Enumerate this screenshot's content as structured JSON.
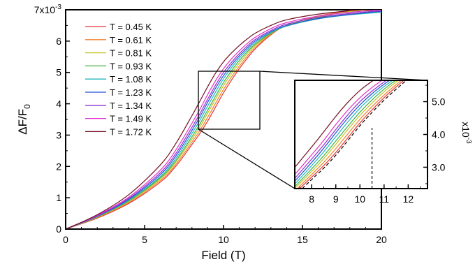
{
  "chart_data": [
    {
      "type": "line",
      "xlabel": "Field (T)",
      "ylabel_main": "ΔF/F",
      "ylabel_sub": "0",
      "xlim": [
        0,
        20
      ],
      "ylim": [
        0,
        7
      ],
      "xticks": [
        "0",
        "5",
        "10",
        "15",
        "20"
      ],
      "yticks": [
        "0",
        "1",
        "2",
        "3",
        "4",
        "5",
        "6",
        "7x10"
      ],
      "yscale_exponent": "-3",
      "unit_scale": 0.001,
      "legend": "top-left",
      "grid": false,
      "series": [
        {
          "name": "T = 0.45 K",
          "color": "#e8322f",
          "x": [
            0,
            2,
            4,
            6,
            7,
            8,
            8.5,
            9,
            9.5,
            10,
            10.5,
            11,
            11.5,
            12,
            13,
            14,
            16,
            18,
            20
          ],
          "y": [
            0,
            0.35,
            0.82,
            1.5,
            2.02,
            2.7,
            3.05,
            3.45,
            3.9,
            4.35,
            4.75,
            5.12,
            5.45,
            5.75,
            6.2,
            6.5,
            6.8,
            6.98,
            7.15
          ]
        },
        {
          "name": "T = 0.61 K",
          "color": "#f08030",
          "x": [
            0,
            2,
            4,
            6,
            7,
            8,
            8.5,
            9,
            9.5,
            10,
            10.5,
            11,
            11.5,
            12,
            13,
            14,
            16,
            18,
            20
          ],
          "y": [
            0,
            0.37,
            0.85,
            1.55,
            2.08,
            2.78,
            3.15,
            3.57,
            4.02,
            4.46,
            4.85,
            5.2,
            5.52,
            5.8,
            6.22,
            6.5,
            6.8,
            6.97,
            7.1
          ]
        },
        {
          "name": "T = 0.81 K",
          "color": "#c8c020",
          "x": [
            0,
            2,
            4,
            6,
            7,
            8,
            8.5,
            9,
            9.5,
            10,
            10.5,
            11,
            11.5,
            12,
            13,
            14,
            16,
            18,
            20
          ],
          "y": [
            0,
            0.38,
            0.88,
            1.6,
            2.15,
            2.87,
            3.26,
            3.7,
            4.15,
            4.58,
            4.96,
            5.3,
            5.6,
            5.86,
            6.24,
            6.5,
            6.78,
            6.94,
            7.05
          ]
        },
        {
          "name": "T = 0.93 K",
          "color": "#40b040",
          "x": [
            0,
            2,
            4,
            6,
            7,
            8,
            8.5,
            9,
            9.5,
            10,
            10.5,
            11,
            11.5,
            12,
            13,
            14,
            16,
            18,
            20
          ],
          "y": [
            0,
            0.39,
            0.9,
            1.64,
            2.2,
            2.95,
            3.35,
            3.8,
            4.25,
            4.68,
            5.05,
            5.38,
            5.66,
            5.9,
            6.25,
            6.48,
            6.74,
            6.88,
            6.98
          ]
        },
        {
          "name": "T = 1.08 K",
          "color": "#20b8b8",
          "x": [
            0,
            2,
            4,
            6,
            7,
            8,
            8.5,
            9,
            9.5,
            10,
            10.5,
            11,
            11.5,
            12,
            13,
            14,
            16,
            18,
            20
          ],
          "y": [
            0,
            0.4,
            0.92,
            1.68,
            2.27,
            3.05,
            3.47,
            3.93,
            4.38,
            4.8,
            5.15,
            5.46,
            5.72,
            5.95,
            6.27,
            6.48,
            6.71,
            6.84,
            6.92
          ]
        },
        {
          "name": "T = 1.23 K",
          "color": "#2050d8",
          "x": [
            0,
            2,
            4,
            6,
            7,
            8,
            8.5,
            9,
            9.5,
            10,
            10.5,
            11,
            11.5,
            12,
            13,
            14,
            16,
            18,
            20
          ],
          "y": [
            0,
            0.41,
            0.95,
            1.74,
            2.35,
            3.15,
            3.58,
            4.05,
            4.5,
            4.9,
            5.24,
            5.53,
            5.78,
            6.0,
            6.3,
            6.5,
            6.72,
            6.85,
            6.95
          ]
        },
        {
          "name": "T = 1.34 K",
          "color": "#9030d0",
          "x": [
            0,
            2,
            4,
            6,
            7,
            8,
            8.5,
            9,
            9.5,
            10,
            10.5,
            11,
            11.5,
            12,
            13,
            14,
            16,
            18,
            20
          ],
          "y": [
            0,
            0.42,
            0.98,
            1.8,
            2.43,
            3.25,
            3.68,
            4.15,
            4.6,
            5.0,
            5.32,
            5.6,
            5.84,
            6.05,
            6.34,
            6.54,
            6.76,
            6.88,
            6.97
          ]
        },
        {
          "name": "T = 1.49 K",
          "color": "#e030c8",
          "x": [
            0,
            2,
            4,
            6,
            7,
            8,
            8.5,
            9,
            9.5,
            10,
            10.5,
            11,
            11.5,
            12,
            13,
            14,
            16,
            18,
            20
          ],
          "y": [
            0,
            0.44,
            1.02,
            1.88,
            2.54,
            3.38,
            3.82,
            4.3,
            4.74,
            5.12,
            5.43,
            5.69,
            5.92,
            6.12,
            6.4,
            6.59,
            6.8,
            6.92,
            7.0
          ]
        },
        {
          "name": "T = 1.72 K",
          "color": "#701020",
          "x": [
            0,
            2,
            4,
            6,
            7,
            8,
            8.5,
            9,
            9.5,
            10,
            10.5,
            11,
            11.5,
            12,
            13,
            14,
            16,
            18,
            20
          ],
          "y": [
            0,
            0.46,
            1.1,
            2.05,
            2.75,
            3.62,
            4.08,
            4.55,
            4.98,
            5.34,
            5.62,
            5.86,
            6.07,
            6.25,
            6.5,
            6.68,
            6.86,
            6.97,
            7.05
          ]
        }
      ]
    },
    {
      "type": "line",
      "inset": true,
      "xlim": [
        7.3,
        12.8
      ],
      "ylim": [
        2.35,
        5.65
      ],
      "xticks": [
        "8",
        "9",
        "10",
        "11",
        "12"
      ],
      "yticks": [
        "3.0",
        "4.0",
        "5.0"
      ],
      "yscale_label": "x10",
      "yscale_exponent": "-3",
      "unit_scale": 0.001,
      "marker_x": 10.5,
      "reference": "dashed tangent",
      "series_source": "main plot series, zoomed"
    }
  ]
}
